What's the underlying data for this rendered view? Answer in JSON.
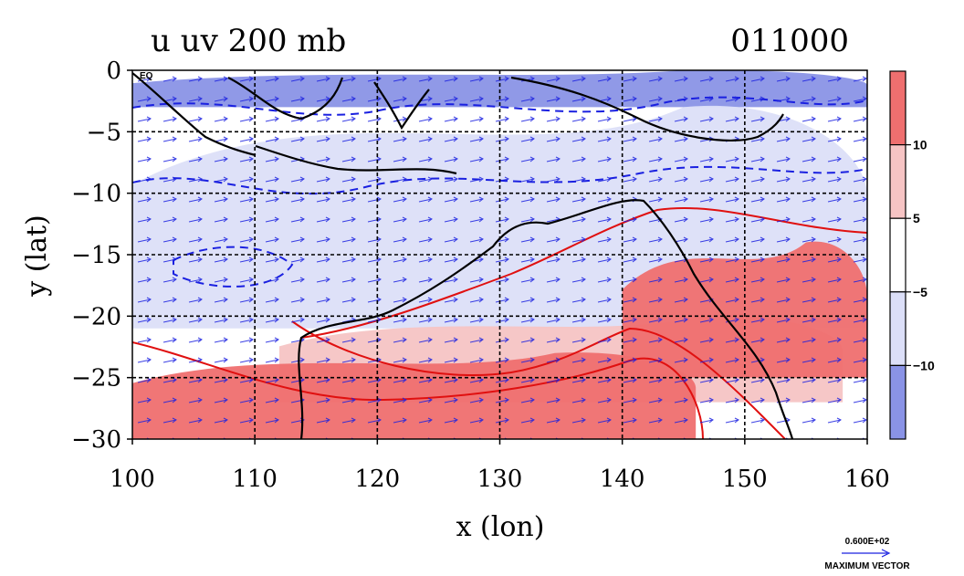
{
  "chart_data": {
    "type": "heatmap",
    "title": "u uv 200 mb",
    "timestamp": "011000",
    "xlabel": "x (lon)",
    "ylabel": "y (lat)",
    "xlim": [
      100,
      160
    ],
    "ylim": [
      -30,
      0
    ],
    "xticks": [
      100,
      110,
      120,
      130,
      140,
      150,
      160
    ],
    "yticks": [
      0,
      -5,
      -10,
      -15,
      -20,
      -25,
      -30
    ],
    "xtick_labels": [
      "100",
      "110",
      "120",
      "130",
      "140",
      "150",
      "160"
    ],
    "ytick_labels": [
      "0",
      "−5",
      "−10",
      "−15",
      "−20",
      "−25",
      "−30"
    ],
    "corner_label": "EQ",
    "grid": true,
    "colorbar": {
      "levels": [
        {
          "range": "< -10",
          "color": "#8a93e6"
        },
        {
          "range": "-10 to -5",
          "color": "#dcdff8"
        },
        {
          "range": "-5 to 5",
          "color": "#ffffff"
        },
        {
          "range": "5 to 10",
          "color": "#f6c4c4"
        },
        {
          "range": "> 10",
          "color": "#ef6f6f"
        }
      ],
      "tick_labels": [
        "10",
        "5",
        "−5",
        "−10"
      ]
    },
    "contours": {
      "positive_color": "#e01010",
      "negative_color": "#1a20e0",
      "positive_style": "solid",
      "negative_style": "dashed"
    },
    "vectors": {
      "color": "#1a20e0",
      "max_vector_label": "0.600E+02",
      "max_vector_caption": "MAXIMUM VECTOR",
      "max_vector_value": 60
    },
    "regions": [
      {
        "name": "strong-easterlies-north",
        "level": "< -10",
        "lon": [
          100,
          160
        ],
        "lat": [
          -3,
          0
        ]
      },
      {
        "name": "easterlies-band",
        "level": "-10 to -5",
        "lon": [
          100,
          160
        ],
        "lat": [
          -21,
          -3
        ]
      },
      {
        "name": "jet-weak-band",
        "level": "5 to 10",
        "lon": [
          112,
          158
        ],
        "lat": [
          -27,
          -20
        ]
      },
      {
        "name": "subtropical-jet",
        "level": "> 10",
        "lon": [
          100,
          146
        ],
        "lat": [
          -30,
          -23
        ]
      },
      {
        "name": "jet-core-east",
        "level": "> 10",
        "lon": [
          140,
          160
        ],
        "lat": [
          -25,
          -14
        ]
      }
    ]
  }
}
